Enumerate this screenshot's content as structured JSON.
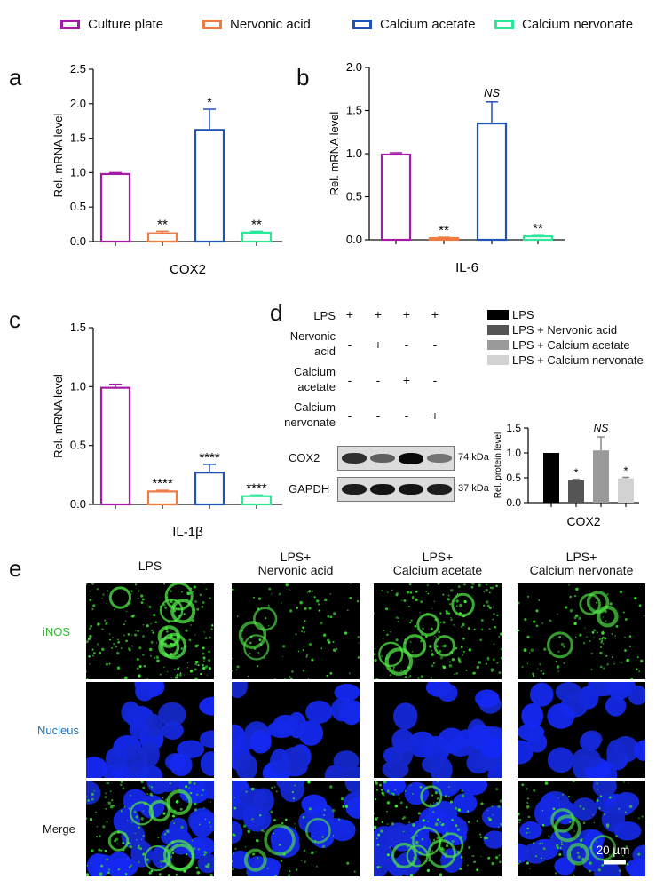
{
  "legend": [
    {
      "label": "Culture plate",
      "color": "#a51aa6"
    },
    {
      "label": "Nervonic acid",
      "color": "#f07a44"
    },
    {
      "label": "Calcium acetate",
      "color": "#2152b8"
    },
    {
      "label": "Calcium nervonate",
      "color": "#2ee89a"
    }
  ],
  "panels": {
    "a": "a",
    "b": "b",
    "c": "c",
    "d": "d",
    "e": "e"
  },
  "chart_data": [
    {
      "type": "bar",
      "panel": "a",
      "ylabel": "Rel. mRNA level",
      "xlabel": "COX2",
      "ylim": [
        0,
        2.5
      ],
      "yticks": [
        "0.0",
        "0.5",
        "1.0",
        "1.5",
        "2.0",
        "2.5"
      ],
      "series": [
        {
          "name": "Culture plate",
          "value": 0.98,
          "error": 0.02,
          "sig": ""
        },
        {
          "name": "Nervonic acid",
          "value": 0.12,
          "error": 0.03,
          "sig": "**"
        },
        {
          "name": "Calcium acetate",
          "value": 1.62,
          "error": 0.3,
          "sig": "*"
        },
        {
          "name": "Calcium nervonate",
          "value": 0.13,
          "error": 0.02,
          "sig": "**"
        }
      ]
    },
    {
      "type": "bar",
      "panel": "b",
      "ylabel": "Rel. mRNA level",
      "xlabel": "IL-6",
      "ylim": [
        0,
        2.0
      ],
      "yticks": [
        "0.0",
        "0.5",
        "1.0",
        "1.5",
        "2.0"
      ],
      "series": [
        {
          "name": "Culture plate",
          "value": 0.99,
          "error": 0.02,
          "sig": ""
        },
        {
          "name": "Nervonic acid",
          "value": 0.02,
          "error": 0.01,
          "sig": "**"
        },
        {
          "name": "Calcium acetate",
          "value": 1.35,
          "error": 0.25,
          "sig": "NS"
        },
        {
          "name": "Calcium nervonate",
          "value": 0.04,
          "error": 0.01,
          "sig": "**"
        }
      ]
    },
    {
      "type": "bar",
      "panel": "c",
      "ylabel": "Rel. mRNA level",
      "xlabel": "IL-1β",
      "ylim": [
        0,
        1.5
      ],
      "yticks": [
        "0.0",
        "0.5",
        "1.0",
        "1.5"
      ],
      "series": [
        {
          "name": "Culture plate",
          "value": 0.99,
          "error": 0.03,
          "sig": ""
        },
        {
          "name": "Nervonic acid",
          "value": 0.11,
          "error": 0.01,
          "sig": "****"
        },
        {
          "name": "Calcium acetate",
          "value": 0.27,
          "error": 0.07,
          "sig": "****"
        },
        {
          "name": "Calcium nervonate",
          "value": 0.07,
          "error": 0.01,
          "sig": "****"
        }
      ]
    },
    {
      "type": "bar",
      "panel": "d",
      "ylabel": "Rel. protein level",
      "xlabel": "COX2",
      "ylim": [
        0,
        1.5
      ],
      "yticks": [
        "0.0",
        "0.5",
        "1.0",
        "1.5"
      ],
      "legend": [
        {
          "label": "LPS",
          "color": "#000000"
        },
        {
          "label": "LPS + Nervonic acid",
          "color": "#555555"
        },
        {
          "label": "LPS + Calcium acetate",
          "color": "#9a9a9a"
        },
        {
          "label": "LPS + Calcium nervonate",
          "color": "#d2d2d2"
        }
      ],
      "series": [
        {
          "name": "LPS",
          "value": 1.0,
          "error": 0.0,
          "sig": ""
        },
        {
          "name": "LPS + Nervonic acid",
          "value": 0.45,
          "error": 0.02,
          "sig": "*"
        },
        {
          "name": "LPS + Calcium acetate",
          "value": 1.05,
          "error": 0.27,
          "sig": "NS"
        },
        {
          "name": "LPS + Calcium nervonate",
          "value": 0.49,
          "error": 0.02,
          "sig": "*"
        }
      ]
    }
  ],
  "western": {
    "rows": [
      {
        "label": "LPS",
        "signs": [
          "+",
          "+",
          "+",
          "+"
        ]
      },
      {
        "label": "Nervonic acid",
        "signs": [
          "-",
          "+",
          "-",
          "-"
        ]
      },
      {
        "label": "Calcium acetate",
        "signs": [
          "-",
          "-",
          "+",
          "-"
        ]
      },
      {
        "label": "Calcium nervonate",
        "signs": [
          "-",
          "-",
          "-",
          "+"
        ]
      }
    ],
    "bands": [
      {
        "label": "COX2",
        "size": "74 kDa",
        "intensity": [
          0.8,
          0.55,
          1.0,
          0.45
        ]
      },
      {
        "label": "GAPDH",
        "size": "37 kDa",
        "intensity": [
          0.9,
          0.95,
          0.95,
          0.9
        ]
      }
    ]
  },
  "microscopy": {
    "columns": [
      "LPS",
      "LPS+\nNervonic acid",
      "LPS+\nCalcium acetate",
      "LPS+\nCalcium nervonate"
    ],
    "rows": [
      {
        "label": "iNOS",
        "color": "#29b82a"
      },
      {
        "label": "Nucleus",
        "color": "#1f72c4"
      },
      {
        "label": "Merge",
        "color": "#111111"
      }
    ],
    "scale_bar": "20 µm"
  }
}
